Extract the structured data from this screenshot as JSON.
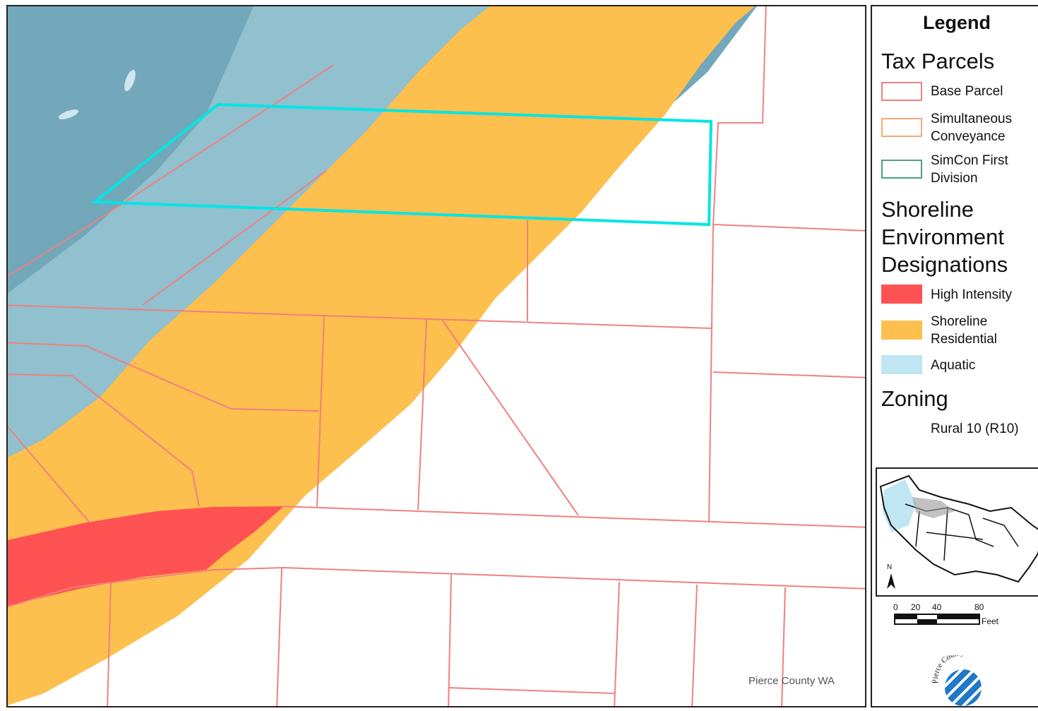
{
  "map": {
    "credit": "Pierce County WA",
    "colors": {
      "water": "#72a8b9",
      "aquatic": "#bfe6f2",
      "shoreline_residential": "#fdbf4d",
      "high_intensity": "#ff5252",
      "parcel_line": "#f08080",
      "highlight": "#00e5e5"
    }
  },
  "legend": {
    "title": "Legend",
    "tax_parcels": {
      "title": "Tax Parcels",
      "items": [
        {
          "label_lines": [
            "Base Parcel"
          ],
          "fill": "#ffffff",
          "stroke": "#f08080"
        },
        {
          "label_lines": [
            "Simultaneous",
            "Conveyance"
          ],
          "fill": "#ffffff",
          "stroke": "#f5a97a"
        },
        {
          "label_lines": [
            "SimCon First",
            "Division"
          ],
          "fill": "#ffffff",
          "stroke": "#4aa37f"
        }
      ]
    },
    "shoreline": {
      "title_lines": [
        "Shoreline",
        "Environment",
        "Designations"
      ],
      "items": [
        {
          "label_lines": [
            "High Intensity"
          ],
          "fill": "#ff5252"
        },
        {
          "label_lines": [
            "Shoreline",
            "Residential"
          ],
          "fill": "#fdbf4d"
        },
        {
          "label_lines": [
            "Aquatic"
          ],
          "fill": "#bfe6f2"
        }
      ]
    },
    "zoning": {
      "title": "Zoning",
      "items": [
        {
          "label": "Rural 10 (R10)"
        }
      ]
    }
  },
  "inset": {
    "north_label": "N"
  },
  "scalebar": {
    "ticks": [
      "0",
      "20",
      "40",
      "80"
    ],
    "unit": "Feet"
  },
  "logo": {
    "text": "Pierce County",
    "icon": "pierce-county-logo-icon"
  }
}
